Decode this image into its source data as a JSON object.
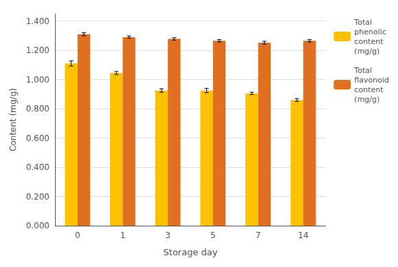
{
  "chart_data": {
    "type": "bar",
    "categories": [
      "0",
      "1",
      "3",
      "5",
      "7",
      "14"
    ],
    "series": [
      {
        "name": "Total\nphenolic\ncontent\n(mg/g)",
        "color": "#FFC000",
        "values": [
          1.11,
          1.045,
          0.925,
          0.925,
          0.905,
          0.86
        ],
        "errors": [
          0.018,
          0.01,
          0.012,
          0.015,
          0.008,
          0.01
        ]
      },
      {
        "name": "Total\nflavonoid\ncontent\n(mg/g)",
        "color": "#E07020",
        "values": [
          1.31,
          1.29,
          1.278,
          1.265,
          1.252,
          1.265
        ],
        "errors": [
          0.01,
          0.008,
          0.008,
          0.008,
          0.01,
          0.008
        ]
      }
    ],
    "xlabel": "Storage day",
    "ylabel": "Content (mg/g)",
    "ylim": [
      0.0,
      1.45
    ],
    "yticks": [
      {
        "value": 0.0,
        "label": "0.000"
      },
      {
        "value": 0.2,
        "label": "0.200"
      },
      {
        "value": 0.4,
        "label": "0.400"
      },
      {
        "value": 0.6,
        "label": "0.600"
      },
      {
        "value": 0.8,
        "label": "0.800"
      },
      {
        "value": 1.0,
        "label": "1.000"
      },
      {
        "value": 1.2,
        "label": "1.200"
      },
      {
        "value": 1.4,
        "label": "1.400"
      }
    ],
    "grid": true,
    "legend": "upper right"
  }
}
